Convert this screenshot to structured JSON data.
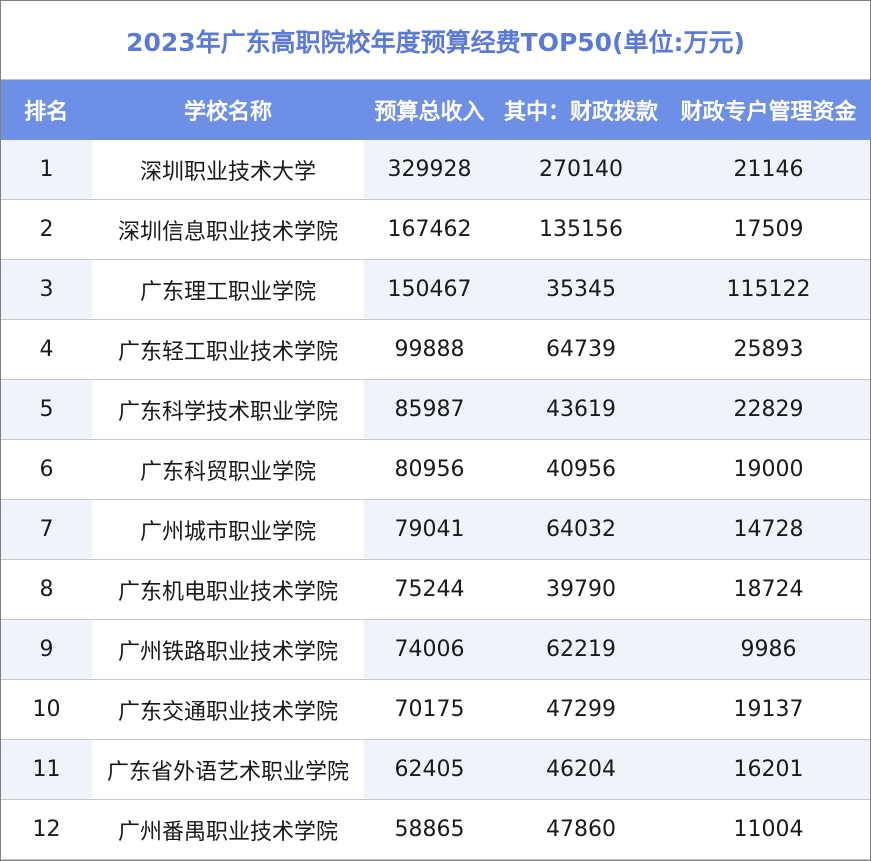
{
  "title": "2023年广东高职院校年度预算经费TOP50(单位:万元)",
  "columns": {
    "rank": "排名",
    "name": "学校名称",
    "total": "预算总收入",
    "fin": "其中：财政拨款",
    "spec": "财政专户管理资金"
  },
  "rows": [
    {
      "rank": "1",
      "name": "深圳职业技术大学",
      "total": "329928",
      "fin": "270140",
      "spec": "21146"
    },
    {
      "rank": "2",
      "name": "深圳信息职业技术学院",
      "total": "167462",
      "fin": "135156",
      "spec": "17509"
    },
    {
      "rank": "3",
      "name": "广东理工职业学院",
      "total": "150467",
      "fin": "35345",
      "spec": "115122"
    },
    {
      "rank": "4",
      "name": "广东轻工职业技术学院",
      "total": "99888",
      "fin": "64739",
      "spec": "25893"
    },
    {
      "rank": "5",
      "name": "广东科学技术职业学院",
      "total": "85987",
      "fin": "43619",
      "spec": "22829"
    },
    {
      "rank": "6",
      "name": "广东科贸职业学院",
      "total": "80956",
      "fin": "40956",
      "spec": "19000"
    },
    {
      "rank": "7",
      "name": "广州城市职业学院",
      "total": "79041",
      "fin": "64032",
      "spec": "14728"
    },
    {
      "rank": "8",
      "name": "广东机电职业技术学院",
      "total": "75244",
      "fin": "39790",
      "spec": "18724"
    },
    {
      "rank": "9",
      "name": "广州铁路职业技术学院",
      "total": "74006",
      "fin": "62219",
      "spec": "9986"
    },
    {
      "rank": "10",
      "name": "广东交通职业技术学院",
      "total": "70175",
      "fin": "47299",
      "spec": "19137"
    },
    {
      "rank": "11",
      "name": "广东省外语艺术职业学院",
      "total": "62405",
      "fin": "46204",
      "spec": "16201"
    },
    {
      "rank": "12",
      "name": "广州番禺职业技术学院",
      "total": "58865",
      "fin": "47860",
      "spec": "11004"
    }
  ]
}
